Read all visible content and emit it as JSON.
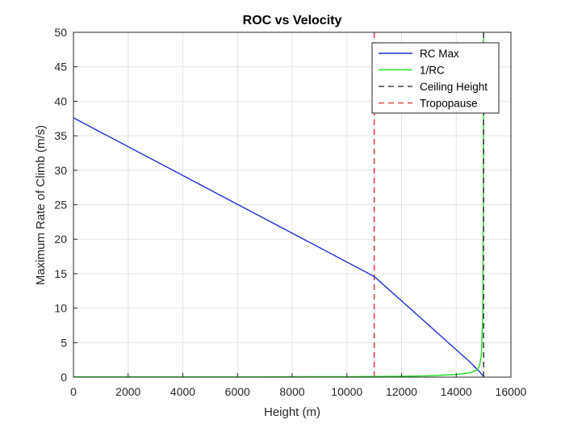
{
  "chart_data": {
    "type": "line",
    "title": "ROC vs Velocity",
    "xlabel": "Height (m)",
    "ylabel": "Maximum Rate of Climb (m/s)",
    "xlim": [
      0,
      16000
    ],
    "ylim": [
      0,
      50
    ],
    "xticks": [
      0,
      2000,
      4000,
      6000,
      8000,
      10000,
      12000,
      14000,
      16000
    ],
    "yticks": [
      0,
      5,
      10,
      15,
      20,
      25,
      30,
      35,
      40,
      45,
      50
    ],
    "grid": true,
    "legend_position": "top-right",
    "series": [
      {
        "name": "RC Max",
        "color": "#1f2fd6",
        "style": "solid",
        "x": [
          0,
          11000,
          14500,
          14800,
          15000
        ],
        "y": [
          37.6,
          14.6,
          2.2,
          1.0,
          0.1
        ]
      },
      {
        "name": "1/RC",
        "color": "#22dd22",
        "style": "solid",
        "x": [
          0,
          6000,
          10000,
          11000,
          12000,
          13000,
          14000,
          14500,
          14750,
          14850,
          14920,
          14970,
          14990,
          15000
        ],
        "y": [
          0.03,
          0.04,
          0.07,
          0.09,
          0.12,
          0.2,
          0.38,
          0.62,
          1.0,
          1.6,
          3.2,
          9.0,
          25.0,
          50.0
        ]
      },
      {
        "name": "Ceiling Height",
        "color": "#444444",
        "style": "dashed",
        "x": [
          15000,
          15000
        ],
        "y": [
          0,
          50
        ]
      },
      {
        "name": "Tropopause",
        "color": "#e0454a",
        "style": "dashed",
        "x": [
          11000,
          11000
        ],
        "y": [
          0,
          50
        ]
      }
    ]
  }
}
